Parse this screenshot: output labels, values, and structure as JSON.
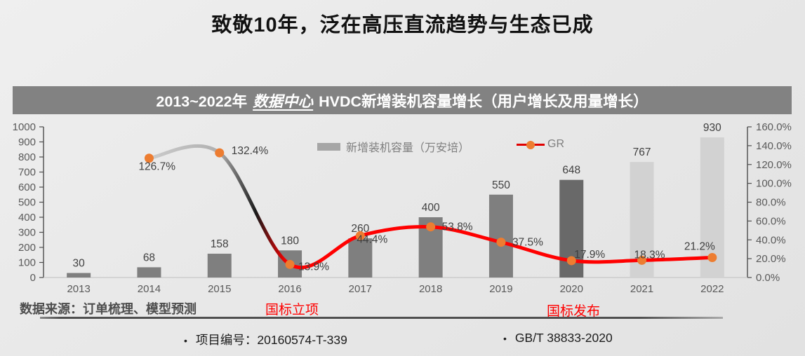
{
  "slide": {
    "title": "致敬10年，泛在高压直流趋势与生态已成",
    "banner": {
      "prefix": "2013~2022年",
      "emphasis": "数据中心",
      "suffix": "HVDC新增装机容量增长（用户增长及用量增长）"
    },
    "source_note": "数据来源：订单梳理、模型预测",
    "annotations": [
      {
        "text": "国标立项",
        "color": "#fe0000"
      },
      {
        "text": "国标发布",
        "color": "#fe0000"
      }
    ],
    "footer": {
      "bullet_glyph": "•",
      "items": [
        "项目编号：20160574-T-339",
        "GB/T 38833-2020"
      ]
    }
  },
  "legend": {
    "bar_label": "新增装机容量（万安培）",
    "line_label": "GR"
  },
  "colors": {
    "banner_bg": "#828282",
    "bar_actual": "#7f7f7f",
    "bar_2020": "#696969",
    "bar_forecast": "#d2d2d2",
    "line_red": "#ff0000",
    "marker_orange": "#ED7D31",
    "annotation_red": "#fe0000",
    "axis_text": "#595959",
    "data_label_text": "#3f3f3f"
  },
  "chart_data": {
    "type": "bar+line combo",
    "categories": [
      "2013",
      "2014",
      "2015",
      "2016",
      "2017",
      "2018",
      "2019",
      "2020",
      "2021",
      "2022"
    ],
    "series": [
      {
        "name": "新增装机容量（万安培）",
        "type": "bar",
        "axis": "left",
        "values": [
          30,
          68,
          158,
          180,
          260,
          400,
          550,
          648,
          767,
          930
        ],
        "colors": [
          "#7f7f7f",
          "#7f7f7f",
          "#7f7f7f",
          "#7f7f7f",
          "#7f7f7f",
          "#7f7f7f",
          "#7f7f7f",
          "#696969",
          "#d2d2d2",
          "#d2d2d2"
        ]
      },
      {
        "name": "GR",
        "type": "line",
        "axis": "right",
        "start_category_index": 1,
        "values": [
          126.7,
          132.4,
          13.9,
          44.4,
          53.8,
          37.5,
          17.9,
          18.3,
          21.2
        ],
        "labels": [
          "126.7%",
          "132.4%",
          "13.9%",
          "44.4%",
          "53.8%",
          "37.5%",
          "17.9%",
          "18.3%",
          "21.2%"
        ],
        "label_offsets": [
          [
            -15,
            17
          ],
          [
            17,
            2
          ],
          [
            12,
            8
          ],
          [
            -5,
            10
          ],
          [
            16,
            5
          ],
          [
            16,
            5
          ],
          [
            4,
            -4
          ],
          [
            -11,
            -3
          ],
          [
            -40,
            -11
          ]
        ],
        "line_color": "#ff0000",
        "marker_color": "#ED7D31",
        "gradient_stops": [
          [
            0,
            "#cbcbcb"
          ],
          [
            0.125,
            "#b0b0b0"
          ],
          [
            0.19,
            "#1a1a1a"
          ],
          [
            0.245,
            "#ff0000"
          ],
          [
            1,
            "#ff0000"
          ]
        ]
      }
    ],
    "left_axis": {
      "min": 0,
      "max": 1000,
      "step": 100
    },
    "right_axis": {
      "min": 0,
      "max": 160,
      "step": 20,
      "decimals": 1,
      "suffix": "%"
    },
    "grid": false,
    "legend_position": "top-center"
  }
}
